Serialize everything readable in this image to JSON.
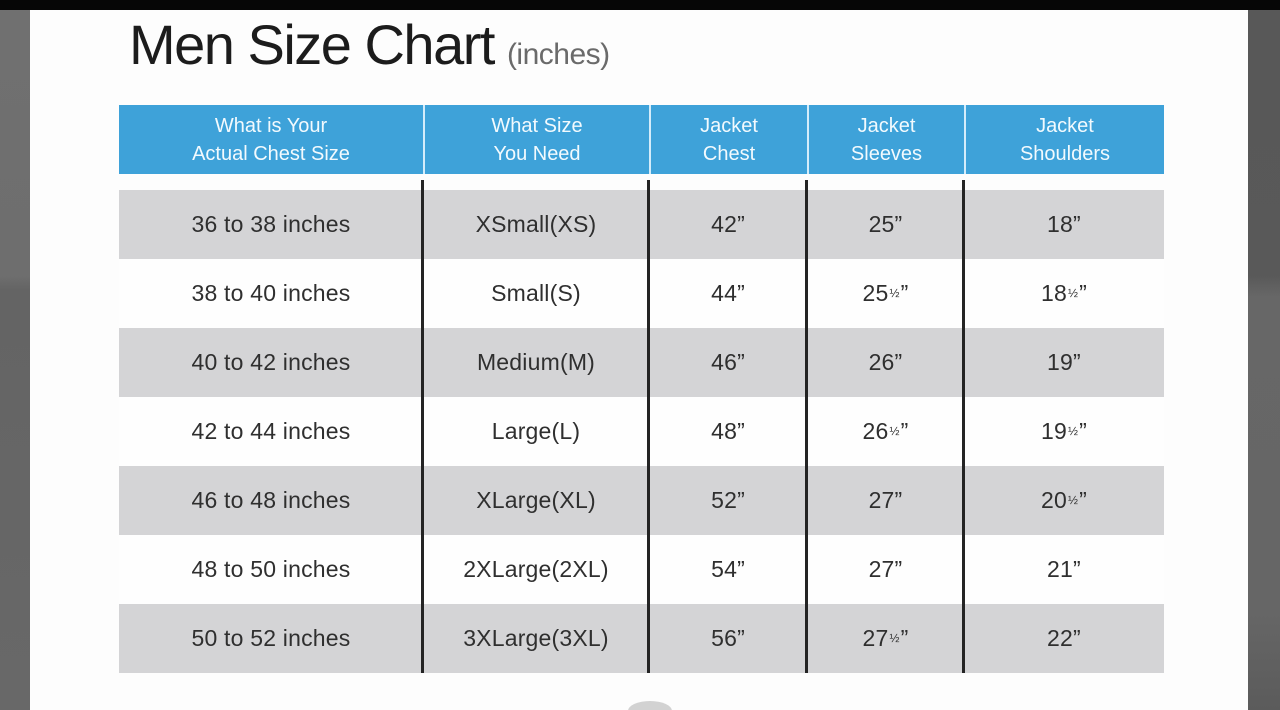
{
  "page": {
    "title": "Men Size Chart",
    "subtitle": "(inches)"
  },
  "chart_data": {
    "type": "table",
    "title": "Men Size Chart",
    "units": "inches",
    "columns": [
      "What is Your Actual Chest Size",
      "What Size You Need",
      "Jacket Chest",
      "Jacket Sleeves",
      "Jacket Shoulders"
    ],
    "rows": [
      [
        "36 to 38 inches",
        "XSmall(XS)",
        "42”",
        "25”",
        "18”"
      ],
      [
        "38 to 40 inches",
        "Small(S)",
        "44”",
        "25½”",
        "18½”"
      ],
      [
        "40 to 42 inches",
        "Medium(M)",
        "46”",
        "26”",
        "19”"
      ],
      [
        "42 to 44 inches",
        "Large(L)",
        "48”",
        "26½”",
        "19½”"
      ],
      [
        "46 to 48 inches",
        "XLarge(XL)",
        "52”",
        "27”",
        "20½”"
      ],
      [
        "48 to 50 inches",
        "2XLarge(2XL)",
        "54”",
        "27”",
        "21”"
      ],
      [
        "50 to 52 inches",
        "3XLarge(3XL)",
        "56”",
        "27½”",
        "22”"
      ]
    ]
  },
  "table": {
    "header_cells": [
      {
        "line1": "What is Your",
        "line2": "Actual Chest Size"
      },
      {
        "line1": "What Size",
        "line2": "You Need"
      },
      {
        "line1": "Jacket",
        "line2": "Chest"
      },
      {
        "line1": "Jacket",
        "line2": "Sleeves"
      },
      {
        "line1": "Jacket",
        "line2": "Shoulders"
      }
    ]
  },
  "colors": {
    "header_bg": "#3EA2D9",
    "header_text": "#F2FAFE",
    "row_alt_bg": "#D4D4D6",
    "body_text": "#2F2F2F",
    "column_divider": "#242424",
    "top_bar": "#060606",
    "side_strip": "#666666"
  }
}
